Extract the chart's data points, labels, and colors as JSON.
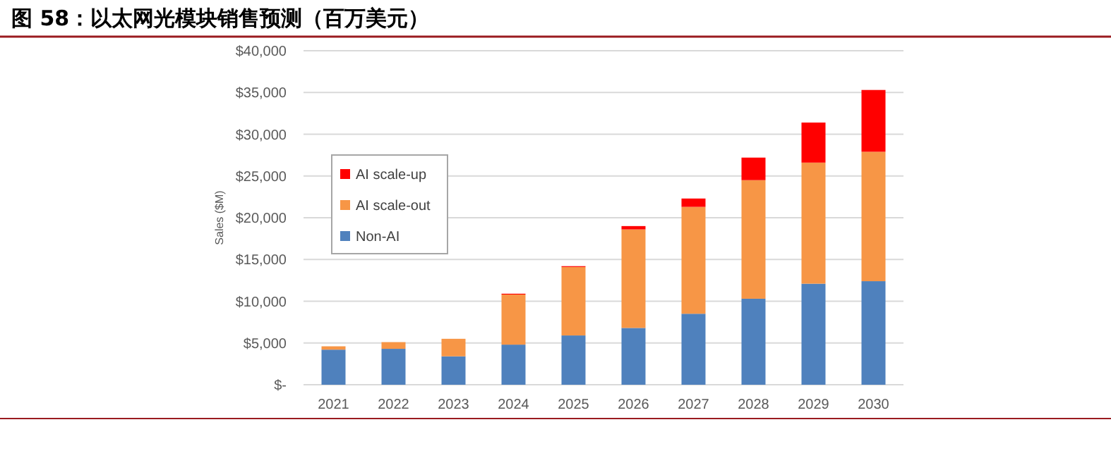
{
  "chart_data": {
    "type": "bar",
    "title": "图 58：以太网光模块销售预测（百万美元）",
    "ylabel": "Sales ($M)",
    "stacked": true,
    "grid": "y",
    "legend": "top left",
    "categories": [
      "2021",
      "2022",
      "2023",
      "2024",
      "2025",
      "2026",
      "2027",
      "2028",
      "2029",
      "2030"
    ],
    "series": [
      {
        "name": "Non-AI",
        "color": "#4f81bd",
        "values": [
          4200,
          4300,
          3400,
          4800,
          5900,
          6800,
          8500,
          10300,
          12100,
          12400
        ]
      },
      {
        "name": "AI scale-out",
        "color": "#f79646",
        "values": [
          400,
          800,
          2100,
          6000,
          8200,
          11800,
          12800,
          14200,
          14500,
          15500
        ]
      },
      {
        "name": "AI scale-up",
        "color": "#ff0000",
        "values": [
          0,
          0,
          0,
          100,
          100,
          400,
          1000,
          2700,
          4800,
          7400
        ]
      }
    ],
    "ylim": [
      0,
      40000
    ],
    "yticks": [
      {
        "value": 0,
        "label": "$-"
      },
      {
        "value": 5000,
        "label": "$5,000"
      },
      {
        "value": 10000,
        "label": "$10,000"
      },
      {
        "value": 15000,
        "label": "$15,000"
      },
      {
        "value": 20000,
        "label": "$20,000"
      },
      {
        "value": 25000,
        "label": "$25,000"
      },
      {
        "value": 30000,
        "label": "$30,000"
      },
      {
        "value": 35000,
        "label": "$35,000"
      },
      {
        "value": 40000,
        "label": "$40,000"
      }
    ]
  }
}
